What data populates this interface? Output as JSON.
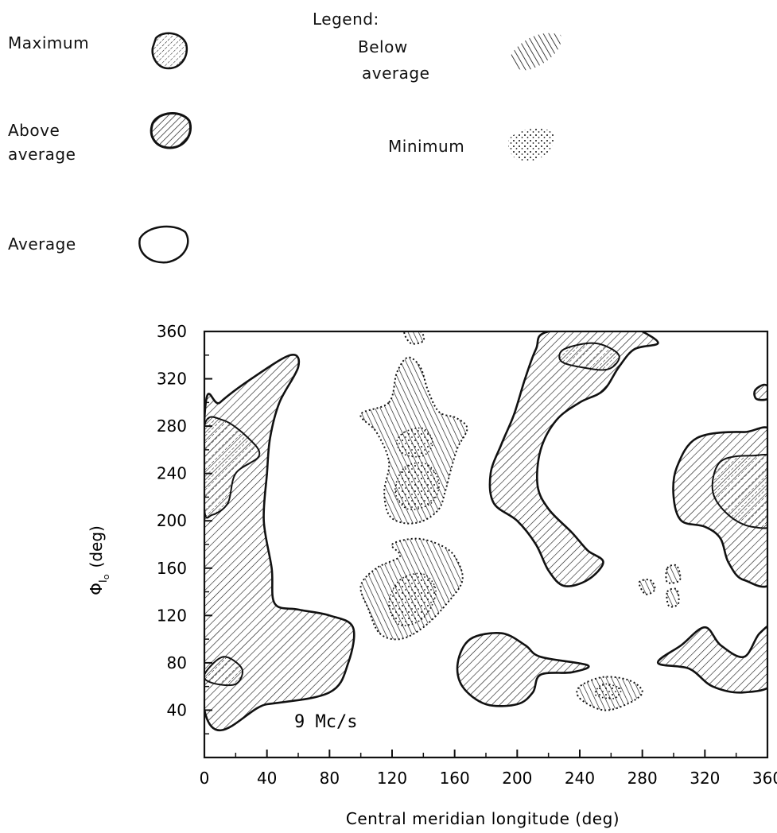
{
  "legend": {
    "title": "Legend:",
    "items": [
      {
        "key": "maximum",
        "lines": [
          "Maximum"
        ]
      },
      {
        "key": "above",
        "lines": [
          "Above",
          "average"
        ]
      },
      {
        "key": "average",
        "lines": [
          "Average"
        ]
      },
      {
        "key": "below",
        "lines": [
          "Below",
          "average"
        ]
      },
      {
        "key": "minimum",
        "lines": [
          "Minimum"
        ]
      }
    ]
  },
  "chart_data": {
    "type": "heatmap",
    "title": "",
    "annotation": "9 Mc/s",
    "xlabel": "Central meridian longitude (deg)",
    "ylabel_symbol": "Φ",
    "ylabel_sub": "I",
    "ylabel_subsub": "o",
    "ylabel_unit": "(deg)",
    "xlim": [
      0,
      360
    ],
    "ylim": [
      0,
      360
    ],
    "x_ticks": [
      0,
      40,
      80,
      120,
      160,
      200,
      240,
      280,
      320,
      360
    ],
    "y_ticks": [
      40,
      80,
      120,
      160,
      200,
      240,
      280,
      320,
      360
    ],
    "x_tick_labels": [
      "0",
      "40",
      "80",
      "120",
      "160",
      "200",
      "240",
      "280",
      "320",
      "360"
    ],
    "y_tick_labels": [
      "40",
      "80",
      "120",
      "160",
      "200",
      "240",
      "280",
      "320",
      "360"
    ],
    "levels": [
      "maximum",
      "above",
      "average",
      "below",
      "minimum"
    ],
    "regions": [
      {
        "name": "region-a-above",
        "level": "above",
        "points": [
          [
            0,
            40
          ],
          [
            40,
            45
          ],
          [
            80,
            55
          ],
          [
            92,
            80
          ],
          [
            95,
            110
          ],
          [
            80,
            120
          ],
          [
            60,
            125
          ],
          [
            45,
            130
          ],
          [
            43,
            160
          ],
          [
            38,
            200
          ],
          [
            40,
            240
          ],
          [
            42,
            270
          ],
          [
            48,
            300
          ],
          [
            60,
            330
          ],
          [
            55,
            340
          ],
          [
            30,
            320
          ],
          [
            10,
            300
          ],
          [
            0,
            285
          ]
        ]
      },
      {
        "name": "region-a-max-top",
        "level": "maximum",
        "points": [
          [
            0,
            280
          ],
          [
            12,
            285
          ],
          [
            28,
            270
          ],
          [
            35,
            255
          ],
          [
            20,
            240
          ],
          [
            15,
            215
          ],
          [
            5,
            205
          ],
          [
            0,
            210
          ]
        ]
      },
      {
        "name": "region-a-max-bottom",
        "level": "maximum",
        "points": [
          [
            0,
            70
          ],
          [
            12,
            85
          ],
          [
            24,
            75
          ],
          [
            20,
            62
          ],
          [
            5,
            63
          ]
        ]
      },
      {
        "name": "region-b-below-upper",
        "level": "below",
        "points": [
          [
            118,
            300
          ],
          [
            123,
            325
          ],
          [
            130,
            338
          ],
          [
            138,
            330
          ],
          [
            143,
            310
          ],
          [
            150,
            292
          ],
          [
            161,
            287
          ],
          [
            168,
            278
          ],
          [
            162,
            262
          ],
          [
            158,
            245
          ],
          [
            154,
            225
          ],
          [
            150,
            210
          ],
          [
            140,
            200
          ],
          [
            128,
            198
          ],
          [
            118,
            205
          ],
          [
            115,
            225
          ],
          [
            118,
            250
          ],
          [
            110,
            275
          ],
          [
            100,
            290
          ]
        ]
      },
      {
        "name": "region-b-min-upper1",
        "level": "minimum",
        "points": [
          [
            128,
            275
          ],
          [
            140,
            278
          ],
          [
            146,
            266
          ],
          [
            140,
            255
          ],
          [
            128,
            256
          ],
          [
            123,
            266
          ]
        ]
      },
      {
        "name": "region-b-min-upper2",
        "level": "minimum",
        "points": [
          [
            128,
            245
          ],
          [
            142,
            248
          ],
          [
            150,
            232
          ],
          [
            145,
            215
          ],
          [
            130,
            210
          ],
          [
            122,
            225
          ]
        ]
      },
      {
        "name": "region-b-below-lower",
        "level": "below",
        "points": [
          [
            120,
            180
          ],
          [
            135,
            185
          ],
          [
            150,
            180
          ],
          [
            160,
            170
          ],
          [
            165,
            150
          ],
          [
            155,
            130
          ],
          [
            140,
            110
          ],
          [
            125,
            100
          ],
          [
            112,
            105
          ],
          [
            105,
            125
          ],
          [
            100,
            145
          ],
          [
            110,
            160
          ],
          [
            125,
            170
          ]
        ]
      },
      {
        "name": "region-b-min-lower",
        "level": "minimum",
        "points": [
          [
            125,
            150
          ],
          [
            140,
            155
          ],
          [
            148,
            140
          ],
          [
            140,
            118
          ],
          [
            125,
            112
          ],
          [
            118,
            130
          ]
        ]
      },
      {
        "name": "region-b-top-edge",
        "level": "below",
        "points": [
          [
            128,
            360
          ],
          [
            138,
            360
          ],
          [
            140,
            352
          ],
          [
            132,
            350
          ]
        ]
      },
      {
        "name": "region-c-above",
        "level": "above",
        "points": [
          [
            220,
            360
          ],
          [
            270,
            365
          ],
          [
            280,
            360
          ],
          [
            290,
            350
          ],
          [
            275,
            345
          ],
          [
            265,
            330
          ],
          [
            255,
            310
          ],
          [
            240,
            300
          ],
          [
            225,
            285
          ],
          [
            215,
            260
          ],
          [
            213,
            230
          ],
          [
            220,
            210
          ],
          [
            235,
            190
          ],
          [
            245,
            175
          ],
          [
            255,
            165
          ],
          [
            245,
            150
          ],
          [
            230,
            145
          ],
          [
            220,
            158
          ],
          [
            212,
            180
          ],
          [
            200,
            200
          ],
          [
            185,
            215
          ],
          [
            183,
            240
          ],
          [
            190,
            265
          ],
          [
            198,
            290
          ],
          [
            205,
            320
          ],
          [
            212,
            345
          ]
        ]
      },
      {
        "name": "region-c-max",
        "level": "maximum",
        "points": [
          [
            230,
            345
          ],
          [
            250,
            350
          ],
          [
            265,
            340
          ],
          [
            258,
            328
          ],
          [
            240,
            330
          ],
          [
            228,
            335
          ]
        ]
      },
      {
        "name": "region-d-above",
        "level": "above",
        "points": [
          [
            315,
            270
          ],
          [
            345,
            275
          ],
          [
            365,
            268
          ],
          [
            365,
            155
          ],
          [
            345,
            150
          ],
          [
            335,
            165
          ],
          [
            330,
            185
          ],
          [
            320,
            195
          ],
          [
            305,
            200
          ],
          [
            300,
            220
          ],
          [
            302,
            245
          ]
        ]
      },
      {
        "name": "region-d-max",
        "level": "maximum",
        "points": [
          [
            330,
            250
          ],
          [
            350,
            255
          ],
          [
            365,
            250
          ],
          [
            365,
            200
          ],
          [
            350,
            195
          ],
          [
            335,
            205
          ],
          [
            325,
            225
          ]
        ]
      },
      {
        "name": "region-d-small",
        "level": "above",
        "points": [
          [
            352,
            310
          ],
          [
            358,
            315
          ],
          [
            363,
            310
          ],
          [
            360,
            303
          ],
          [
            353,
            303
          ]
        ]
      },
      {
        "name": "region-e-above",
        "level": "above",
        "points": [
          [
            180,
            45
          ],
          [
            200,
            45
          ],
          [
            210,
            55
          ],
          [
            215,
            70
          ],
          [
            235,
            72
          ],
          [
            245,
            78
          ],
          [
            215,
            85
          ],
          [
            205,
            95
          ],
          [
            190,
            105
          ],
          [
            170,
            100
          ],
          [
            162,
            80
          ],
          [
            165,
            60
          ]
        ]
      },
      {
        "name": "region-f-above",
        "level": "above",
        "points": [
          [
            290,
            80
          ],
          [
            310,
            75
          ],
          [
            325,
            60
          ],
          [
            345,
            55
          ],
          [
            365,
            65
          ],
          [
            365,
            110
          ],
          [
            355,
            105
          ],
          [
            345,
            85
          ],
          [
            330,
            95
          ],
          [
            320,
            110
          ],
          [
            305,
            95
          ]
        ]
      },
      {
        "name": "region-g-below",
        "level": "below",
        "points": [
          [
            240,
            50
          ],
          [
            255,
            40
          ],
          [
            270,
            45
          ],
          [
            280,
            55
          ],
          [
            272,
            65
          ],
          [
            255,
            68
          ],
          [
            240,
            60
          ]
        ]
      },
      {
        "name": "region-g-min",
        "level": "minimum",
        "points": [
          [
            250,
            53
          ],
          [
            262,
            50
          ],
          [
            266,
            58
          ],
          [
            255,
            62
          ]
        ]
      },
      {
        "name": "region-h-below-1",
        "level": "below",
        "points": [
          [
            278,
            148
          ],
          [
            285,
            150
          ],
          [
            288,
            142
          ],
          [
            282,
            138
          ]
        ]
      },
      {
        "name": "region-h-below-2",
        "level": "below",
        "points": [
          [
            296,
            160
          ],
          [
            302,
            162
          ],
          [
            304,
            150
          ],
          [
            296,
            148
          ]
        ]
      },
      {
        "name": "region-h-below-3",
        "level": "below",
        "points": [
          [
            296,
            140
          ],
          [
            302,
            142
          ],
          [
            303,
            130
          ],
          [
            297,
            128
          ]
        ]
      }
    ]
  }
}
